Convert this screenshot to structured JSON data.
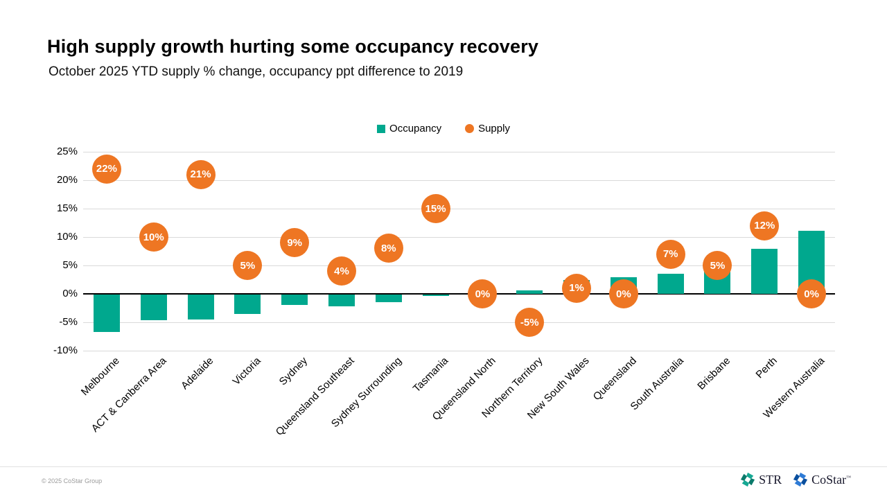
{
  "header": {
    "title": "High supply growth hurting some occupancy recovery",
    "subtitle": "October 2025 YTD supply % change, occupancy ppt difference to 2019"
  },
  "chart_data": {
    "type": "bar",
    "title": "High supply growth hurting some occupancy recovery",
    "subtitle": "October 2025 YTD supply % change, occupancy ppt difference to 2019",
    "categories": [
      "Melbourne",
      "ACT & Canberra Area",
      "Adelaide",
      "Victoria",
      "Sydney",
      "Queensland Southeast",
      "Sydney Surrounding",
      "Tasmania",
      "Queensland North",
      "Northern Territory",
      "New South Wales",
      "Queensland",
      "South Australia",
      "Brisbane",
      "Perth",
      "Western Australia"
    ],
    "series": [
      {
        "name": "Occupancy",
        "render": "bar",
        "color": "#00A88E",
        "values": [
          -6.6,
          -4.5,
          -4.4,
          -3.4,
          -1.8,
          -2.1,
          -1.3,
          -0.3,
          0,
          0.6,
          2.5,
          2.9,
          3.5,
          3.9,
          7.9,
          11.1
        ]
      },
      {
        "name": "Supply",
        "render": "labeled-bubble",
        "color": "#EE7623",
        "values": [
          22,
          10,
          21,
          5,
          9,
          4,
          8,
          15,
          0,
          -5,
          1,
          0,
          7,
          5,
          12,
          0
        ],
        "labels": [
          "22%",
          "10%",
          "21%",
          "5%",
          "9%",
          "4%",
          "8%",
          "15%",
          "0%",
          "-5%",
          "1%",
          "0%",
          "7%",
          "5%",
          "12%",
          "0%"
        ]
      }
    ],
    "ylim": [
      -10,
      25
    ],
    "yticks": [
      {
        "label": "25%",
        "value": 25
      },
      {
        "label": "20%",
        "value": 20
      },
      {
        "label": "15%",
        "value": 15
      },
      {
        "label": "10%",
        "value": 10
      },
      {
        "label": "5%",
        "value": 5
      },
      {
        "label": "0%",
        "value": 0
      },
      {
        "label": "-5%",
        "value": -5
      },
      {
        "label": "-10%",
        "value": -10
      }
    ],
    "grid": true,
    "legend_position": "top-center"
  },
  "footer": {
    "copyright": "© 2025 CoStar Group",
    "logos": {
      "str": {
        "label": "STR"
      },
      "costar": {
        "label": "CoStar",
        "trademark": "™"
      }
    }
  },
  "colors": {
    "occupancy": "#00A88E",
    "supply": "#EE7623",
    "gridline": "#d9d9d9",
    "zero_axis": "#000000",
    "str_logo_dark": "#0b7a6b",
    "str_logo_light": "#16a893",
    "costar_logo_dark": "#0a4f9e",
    "costar_logo_light": "#2e7bd6"
  }
}
